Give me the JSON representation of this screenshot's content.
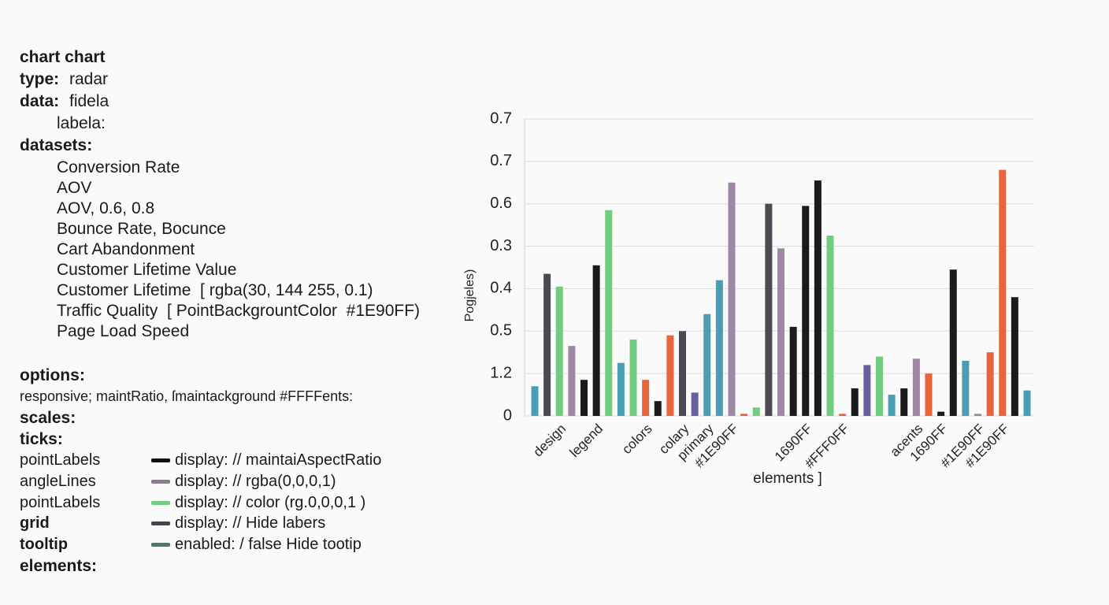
{
  "config_panel": {
    "title": "chart chart",
    "type": {
      "key": "type:",
      "value": "radar"
    },
    "data": {
      "key": "data:",
      "value": "fidela",
      "labels": "labela:"
    },
    "datasets": {
      "key": "datasets:",
      "items": [
        "Conversion Rate",
        "AOV",
        "AOV, 0.6, 0.8",
        "Bounce Rate, Bocunce",
        "Cart Abandonment",
        "Customer Lifetime Value",
        "Customer Lifetime  [ rgba(30, 144 255, 0.1)",
        "Traffic Quality  [ PointBackgrountColor  #1E90FF)",
        "Page Load Speed"
      ]
    },
    "options": {
      "key": "options:",
      "line": "responsive; maintRatio, ſmaintackground #FFFFents:"
    },
    "scales": "scales:",
    "ticks": "ticks:",
    "settings": [
      {
        "name": "pointLabels",
        "text": "display: // maintaiAspectRatio"
      },
      {
        "name": "angleLines",
        "text": "display: // rgba(0,0,0,1)"
      },
      {
        "name": "pointLabels",
        "text": "display: // color (rg.0,0,0,1 )"
      },
      {
        "name": "grid",
        "text": "display: // Hide labers"
      },
      {
        "name": "tooltip",
        "text": "enabled: / false Hide tootip"
      }
    ],
    "elements": "elements:"
  },
  "chart_data": {
    "type": "bar",
    "y_label": "Pogjeles)",
    "x_label": "elements ]",
    "categories": [
      null,
      null,
      "design",
      null,
      null,
      "legend",
      null,
      null,
      null,
      "colors",
      null,
      null,
      "colary",
      null,
      "primary",
      null,
      "#1E90FF",
      null,
      null,
      null,
      null,
      null,
      "1690FF",
      null,
      null,
      "#FFF0FF",
      null,
      null,
      null,
      null,
      null,
      "acents",
      null,
      "1690FF",
      null,
      null,
      "#1E90FF",
      null,
      "#1E90FF",
      null,
      null
    ],
    "values": [
      0.07,
      0.335,
      0.305,
      0.165,
      0.085,
      0.355,
      0.485,
      0.125,
      0.18,
      0.085,
      0.035,
      0.19,
      0.2,
      0.055,
      0.24,
      0.32,
      0.55,
      0.005,
      0.02,
      0.5,
      0.395,
      0.21,
      0.495,
      0.555,
      0.425,
      0.005,
      0.065,
      0.12,
      0.14,
      0.05,
      0.065,
      0.135,
      0.1,
      0.01,
      0.345,
      0.13,
      0.005,
      0.15,
      0.58,
      0.28,
      0.06
    ],
    "colors": [
      "#4b9db3",
      "#4a4a52",
      "#72cc80",
      "#9e88a6",
      "#1b1b1b",
      "#1b1b1b",
      "#72cc80",
      "#4b9db3",
      "#72cc80",
      "#e8643a",
      "#1b1b1b",
      "#e8643a",
      "#4a4a52",
      "#6a5f9e",
      "#4b9db3",
      "#4b9db3",
      "#9e88a6",
      "#e8643a",
      "#72cc80",
      "#4a4a52",
      "#9e88a6",
      "#1b1b1b",
      "#1b1b1b",
      "#1b1b1b",
      "#72cc80",
      "#e8643a",
      "#1b1b1b",
      "#6a5f9e",
      "#72cc80",
      "#4b9db3",
      "#1b1b1b",
      "#9e88a6",
      "#e8643a",
      "#1b1b1b",
      "#1b1b1b",
      "#4b9db3",
      "#9e88a6",
      "#e8643a",
      "#e8643a",
      "#1b1b1b",
      "#4b9db3"
    ],
    "ylim": [
      0,
      0.7
    ],
    "yticks": [
      0,
      {
        "value": 0.1,
        "label": "1.2"
      },
      {
        "value": 0.2,
        "label": "0.5"
      },
      {
        "value": 0.3,
        "label": "0.4"
      },
      {
        "value": 0.4,
        "label": "0.3"
      },
      {
        "value": 0.5,
        "label": "0.6"
      },
      {
        "value": 0.6,
        "label": "0.7"
      },
      0.7
    ],
    "grid": true
  }
}
